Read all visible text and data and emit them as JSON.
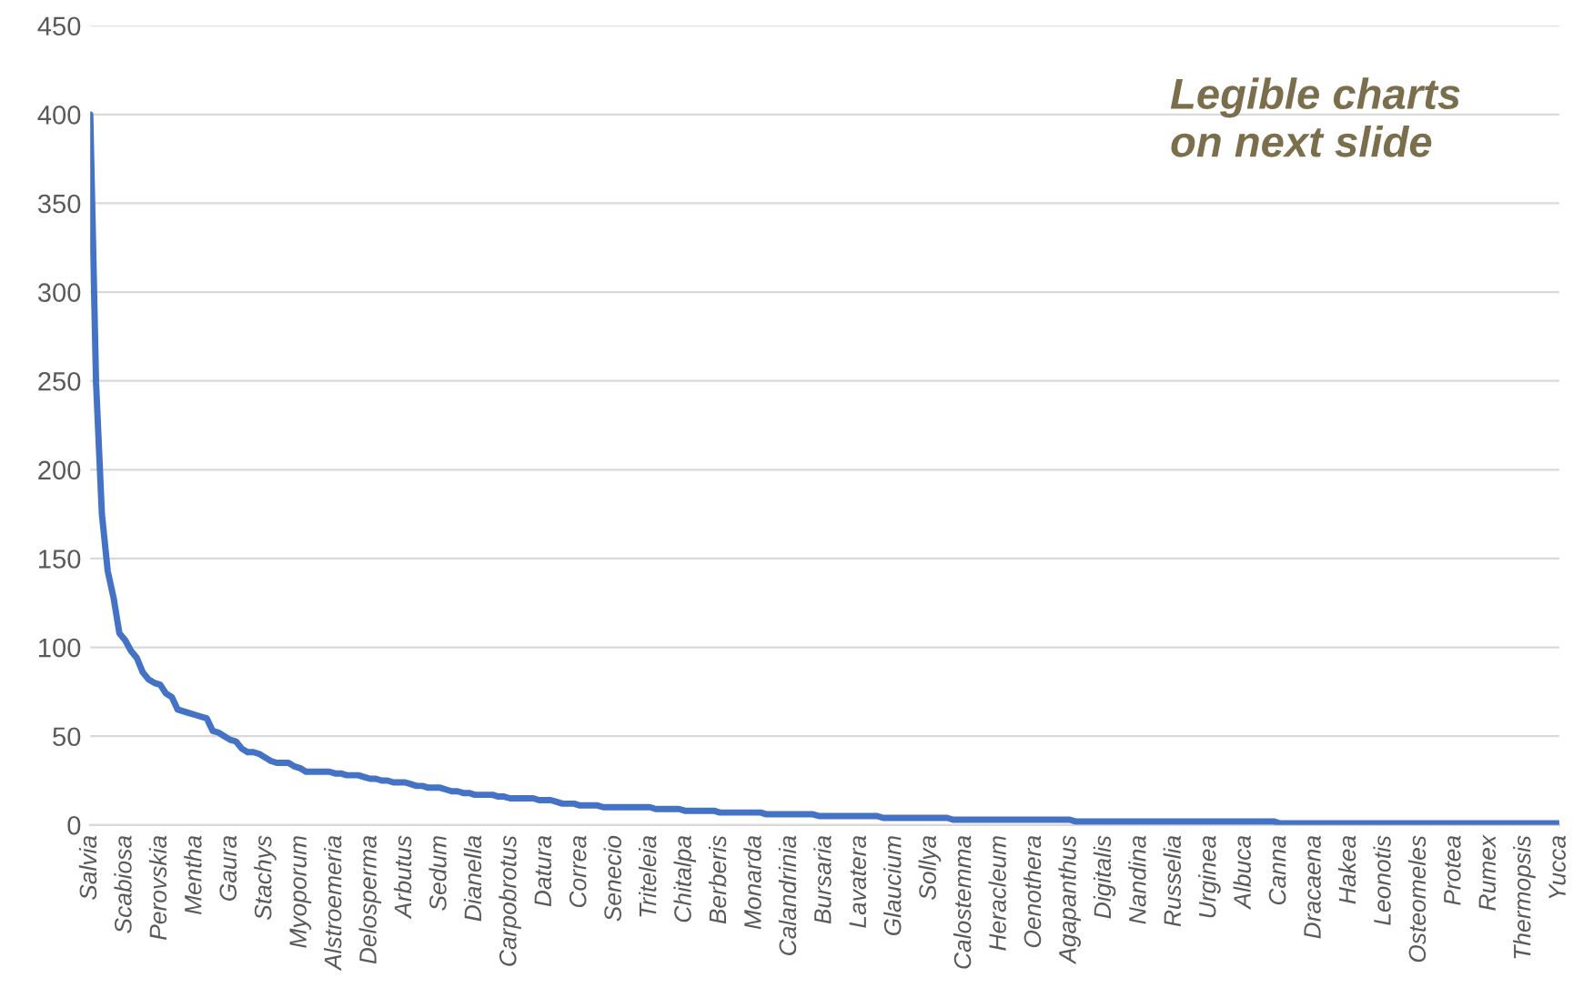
{
  "chart_data": {
    "type": "line",
    "categories": [
      "Salvia",
      null,
      null,
      null,
      null,
      null,
      "Scabiosa",
      null,
      null,
      null,
      null,
      null,
      "Perovskia",
      null,
      null,
      null,
      null,
      null,
      "Mentha",
      null,
      null,
      null,
      null,
      null,
      "Gaura",
      null,
      null,
      null,
      null,
      null,
      "Stachys",
      null,
      null,
      null,
      null,
      null,
      "Myoporum",
      null,
      null,
      null,
      null,
      null,
      "Alstroemeria",
      null,
      null,
      null,
      null,
      null,
      "Delosperma",
      null,
      null,
      null,
      null,
      null,
      "Arbutus",
      null,
      null,
      null,
      null,
      null,
      "Sedum",
      null,
      null,
      null,
      null,
      null,
      "Dianella",
      null,
      null,
      null,
      null,
      null,
      "Carpobrotus",
      null,
      null,
      null,
      null,
      null,
      "Datura",
      null,
      null,
      null,
      null,
      null,
      "Correa",
      null,
      null,
      null,
      null,
      null,
      "Senecio",
      null,
      null,
      null,
      null,
      null,
      "Triteleia",
      null,
      null,
      null,
      null,
      null,
      "Chitalpa",
      null,
      null,
      null,
      null,
      null,
      "Berberis",
      null,
      null,
      null,
      null,
      null,
      "Monarda",
      null,
      null,
      null,
      null,
      null,
      "Calandrinia",
      null,
      null,
      null,
      null,
      null,
      "Bursaria",
      null,
      null,
      null,
      null,
      null,
      "Lavatera",
      null,
      null,
      null,
      null,
      null,
      "Glaucium",
      null,
      null,
      null,
      null,
      null,
      "Sollya",
      null,
      null,
      null,
      null,
      null,
      "Calostemma",
      null,
      null,
      null,
      null,
      null,
      "Heracleum",
      null,
      null,
      null,
      null,
      null,
      "Oenothera",
      null,
      null,
      null,
      null,
      null,
      "Agapanthus",
      null,
      null,
      null,
      null,
      null,
      "Digitalis",
      null,
      null,
      null,
      null,
      null,
      "Nandina",
      null,
      null,
      null,
      null,
      null,
      "Russelia",
      null,
      null,
      null,
      null,
      null,
      "Urginea",
      null,
      null,
      null,
      null,
      null,
      "Albuca",
      null,
      null,
      null,
      null,
      null,
      "Canna",
      null,
      null,
      null,
      null,
      null,
      "Dracaena",
      null,
      null,
      null,
      null,
      null,
      "Hakea",
      null,
      null,
      null,
      null,
      null,
      "Leonotis",
      null,
      null,
      null,
      null,
      null,
      "Osteomeles",
      null,
      null,
      null,
      null,
      null,
      "Protea",
      null,
      null,
      null,
      null,
      null,
      "Rumex",
      null,
      null,
      null,
      null,
      null,
      "Thermopsis",
      null,
      null,
      null,
      null,
      null,
      "Yucca"
    ],
    "series": [
      {
        "color": "#4472c4",
        "values": [
          400,
          249,
          175,
          143,
          128,
          108,
          104,
          98,
          94,
          86,
          82,
          80,
          79,
          74,
          72,
          65,
          64,
          63,
          62,
          61,
          60,
          53,
          52,
          50,
          48,
          47,
          43,
          41,
          41,
          40,
          38,
          36,
          35,
          35,
          35,
          33,
          32,
          30,
          30,
          30,
          30,
          30,
          29,
          29,
          28,
          28,
          28,
          27,
          26,
          26,
          25,
          25,
          24,
          24,
          24,
          23,
          22,
          22,
          21,
          21,
          21,
          20,
          19,
          19,
          18,
          18,
          17,
          17,
          17,
          17,
          16,
          16,
          15,
          15,
          15,
          15,
          15,
          14,
          14,
          14,
          13,
          12,
          12,
          12,
          11,
          11,
          11,
          11,
          10,
          10,
          10,
          10,
          10,
          10,
          10,
          10,
          10,
          9,
          9,
          9,
          9,
          9,
          8,
          8,
          8,
          8,
          8,
          8,
          7,
          7,
          7,
          7,
          7,
          7,
          7,
          7,
          6,
          6,
          6,
          6,
          6,
          6,
          6,
          6,
          6,
          5,
          5,
          5,
          5,
          5,
          5,
          5,
          5,
          5,
          5,
          5,
          4,
          4,
          4,
          4,
          4,
          4,
          4,
          4,
          4,
          4,
          4,
          4,
          3,
          3,
          3,
          3,
          3,
          3,
          3,
          3,
          3,
          3,
          3,
          3,
          3,
          3,
          3,
          3,
          3,
          3,
          3,
          3,
          3,
          2,
          2,
          2,
          2,
          2,
          2,
          2,
          2,
          2,
          2,
          2,
          2,
          2,
          2,
          2,
          2,
          2,
          2,
          2,
          2,
          2,
          2,
          2,
          2,
          2,
          2,
          2,
          2,
          2,
          2,
          2,
          2,
          2,
          2,
          2,
          1,
          1,
          1,
          1,
          1,
          1,
          1,
          1,
          1,
          1,
          1,
          1,
          1,
          1,
          1,
          1,
          1,
          1,
          1,
          1,
          1,
          1,
          1,
          1,
          1,
          1,
          1,
          1,
          1,
          1,
          1,
          1,
          1,
          1,
          1,
          1,
          1,
          1,
          1,
          1,
          1,
          1,
          1,
          1,
          1,
          1,
          1,
          1,
          1
        ]
      }
    ],
    "ylim": [
      0,
      450
    ],
    "yticks": [
      0,
      50,
      100,
      150,
      200,
      250,
      300,
      350,
      400,
      450
    ],
    "grid": "y",
    "annotations": [
      "Legible charts\non next slide"
    ]
  }
}
